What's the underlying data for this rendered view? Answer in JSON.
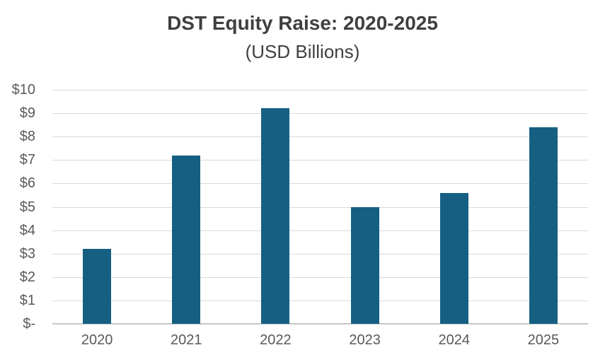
{
  "chart_data": {
    "type": "bar",
    "title": "DST Equity Raise: 2020-2025",
    "subtitle": "(USD Billions)",
    "categories": [
      "2020",
      "2021",
      "2022",
      "2023",
      "2024",
      "2025"
    ],
    "values": [
      3.2,
      7.2,
      9.2,
      5.0,
      5.6,
      8.4
    ],
    "series_name": "DST Equity Raise",
    "xlabel": "",
    "ylabel": "",
    "ylim": [
      0,
      10
    ],
    "y_tick_interval": 1,
    "y_tick_labels": [
      "$-",
      "$1",
      "$2",
      "$3",
      "$4",
      "$5",
      "$6",
      "$7",
      "$8",
      "$9",
      "$10"
    ],
    "grid": "horizontal",
    "legend": "none",
    "colors": {
      "bar": "#156082",
      "gridline": "#D9D9D9",
      "axis_line": "#C6C6C6",
      "title_text": "#3F3F3F",
      "subtitle_text": "#404040",
      "tick_text": "#595959",
      "background": "#FFFFFF"
    }
  }
}
